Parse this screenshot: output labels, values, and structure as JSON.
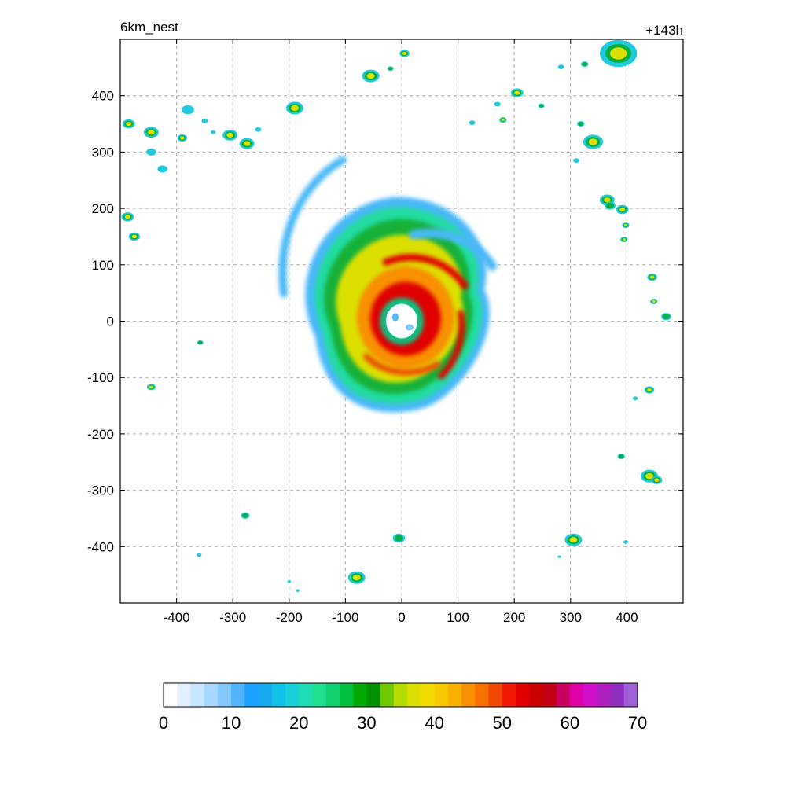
{
  "chart_data": {
    "type": "heatmap",
    "title_left": "6km_nest",
    "title_right": "+143h",
    "xlim": [
      -500,
      500
    ],
    "ylim": [
      -500,
      500
    ],
    "x_ticks": [
      -400,
      -300,
      -200,
      -100,
      0,
      100,
      200,
      300,
      400
    ],
    "y_ticks": [
      400,
      300,
      200,
      100,
      0,
      -100,
      -200,
      -300,
      -400
    ],
    "grid": true,
    "colorbar": {
      "min": 0,
      "max": 70,
      "step": 2.5,
      "ticks": [
        0,
        10,
        20,
        30,
        40,
        50,
        60,
        70
      ],
      "colors": [
        "#ffffff",
        "#e0f0ff",
        "#c8e6ff",
        "#a8d8ff",
        "#80c8ff",
        "#50b4ff",
        "#1ea0ff",
        "#16aaf0",
        "#10c0e8",
        "#18d0d8",
        "#20dcb4",
        "#20e090",
        "#10d070",
        "#00c040",
        "#00a800",
        "#009000",
        "#70c800",
        "#b4dc00",
        "#dce000",
        "#f0dc00",
        "#f8c800",
        "#f8b000",
        "#f89000",
        "#f87000",
        "#f04800",
        "#f01800",
        "#e00000",
        "#c80000",
        "#c00010",
        "#c80060",
        "#e000a8",
        "#d010c8",
        "#b020c0",
        "#9030c0",
        "#a060d8"
      ]
    },
    "features": [
      {
        "kind": "cyclone",
        "x": 0,
        "y": 0
      }
    ],
    "cells": [
      [
        -485,
        350,
        10,
        38
      ],
      [
        -445,
        335,
        12,
        42
      ],
      [
        -445,
        300,
        8,
        20
      ],
      [
        -425,
        270,
        8,
        22
      ],
      [
        -390,
        325,
        8,
        40
      ],
      [
        -380,
        375,
        10,
        18
      ],
      [
        -350,
        355,
        5,
        15
      ],
      [
        -335,
        335,
        4,
        15
      ],
      [
        -305,
        330,
        12,
        38
      ],
      [
        -275,
        315,
        12,
        46
      ],
      [
        -255,
        340,
        5,
        22
      ],
      [
        -190,
        378,
        14,
        44
      ],
      [
        -487,
        185,
        10,
        42
      ],
      [
        -475,
        150,
        9,
        40
      ],
      [
        -445,
        -117,
        7,
        36
      ],
      [
        -358,
        -38,
        5,
        26
      ],
      [
        -278,
        -345,
        7,
        30
      ],
      [
        -360,
        -415,
        4,
        16
      ],
      [
        -80,
        -455,
        14,
        42
      ],
      [
        -5,
        -385,
        10,
        34
      ],
      [
        -200,
        -462,
        3,
        16
      ],
      [
        -185,
        -478,
        3,
        16
      ],
      [
        -55,
        435,
        14,
        44
      ],
      [
        5,
        475,
        8,
        38
      ],
      [
        -20,
        448,
        5,
        28
      ],
      [
        205,
        405,
        10,
        44
      ],
      [
        180,
        357,
        6,
        38
      ],
      [
        125,
        352,
        5,
        20
      ],
      [
        170,
        385,
        5,
        20
      ],
      [
        248,
        382,
        5,
        28
      ],
      [
        283,
        451,
        5,
        20
      ],
      [
        325,
        456,
        6,
        30
      ],
      [
        385,
        475,
        30,
        46
      ],
      [
        318,
        350,
        6,
        32
      ],
      [
        340,
        318,
        16,
        52
      ],
      [
        310,
        285,
        5,
        22
      ],
      [
        365,
        215,
        12,
        50
      ],
      [
        392,
        198,
        10,
        46
      ],
      [
        398,
        170,
        6,
        36
      ],
      [
        395,
        145,
        6,
        38
      ],
      [
        370,
        205,
        9,
        30
      ],
      [
        445,
        78,
        8,
        36
      ],
      [
        448,
        35,
        6,
        36
      ],
      [
        470,
        8,
        8,
        30
      ],
      [
        440,
        -122,
        8,
        38
      ],
      [
        415,
        -137,
        4,
        22
      ],
      [
        390,
        -240,
        6,
        32
      ],
      [
        440,
        -275,
        14,
        46
      ],
      [
        453,
        -282,
        9,
        54
      ],
      [
        305,
        -388,
        14,
        48
      ],
      [
        398,
        -392,
        4,
        20
      ],
      [
        280,
        -418,
        3,
        16
      ]
    ]
  }
}
